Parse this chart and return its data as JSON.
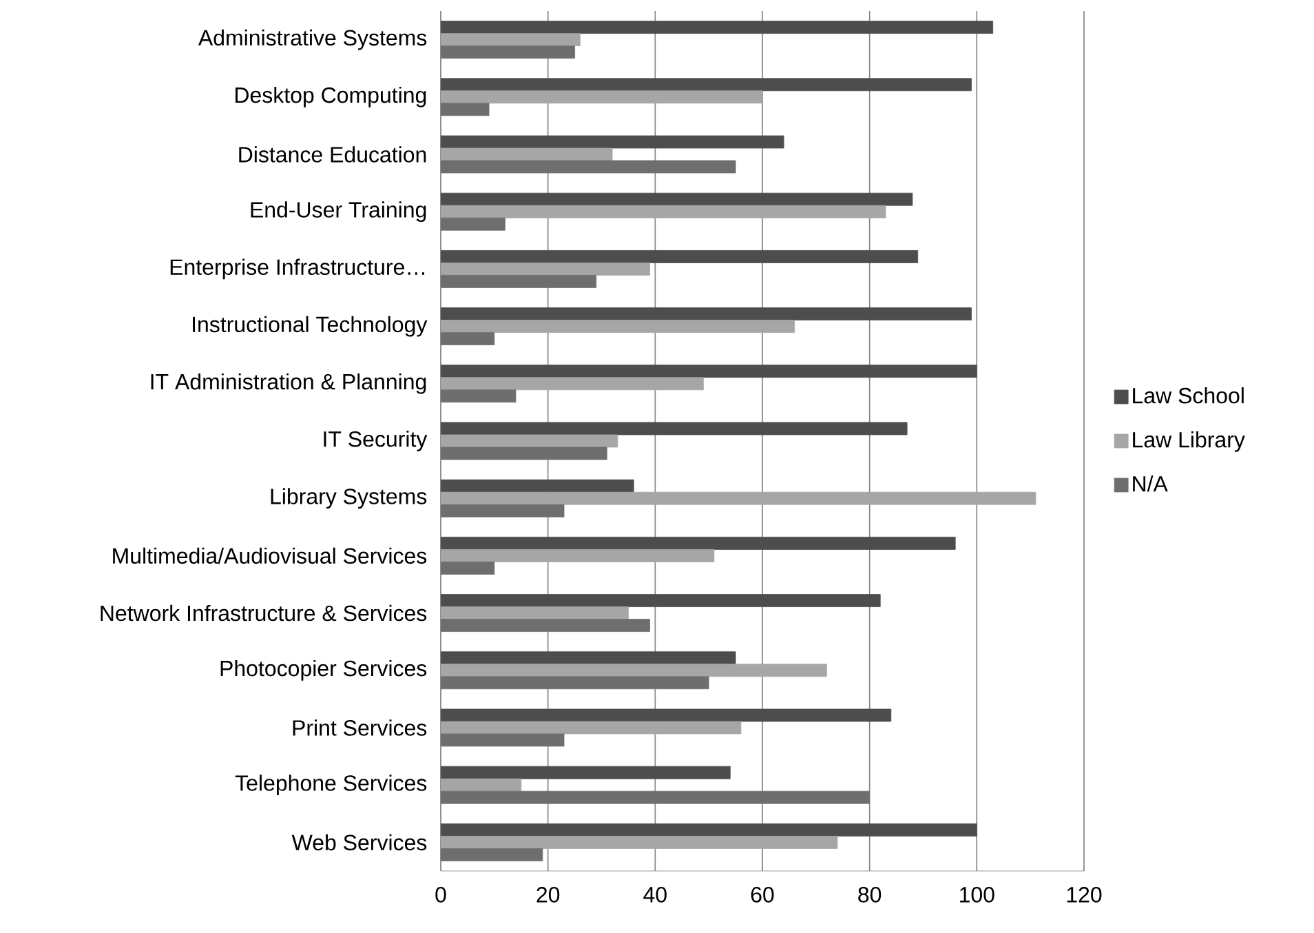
{
  "chart_data": {
    "type": "bar",
    "orientation": "horizontal",
    "categories": [
      "Administrative Systems",
      "Desktop Computing",
      "Distance Education",
      "End-User Training",
      "Enterprise Infrastructure…",
      "Instructional Technology",
      "IT Administration & Planning",
      "IT Security",
      "Library Systems",
      "Multimedia/Audiovisual Services",
      "Network Infrastructure & Services",
      "Photocopier Services",
      "Print Services",
      "Telephone Services",
      "Web Services"
    ],
    "series": [
      {
        "name": "Law School",
        "color": "#4d4d4d",
        "values": [
          103,
          99,
          64,
          88,
          89,
          99,
          100,
          87,
          36,
          96,
          82,
          55,
          84,
          54,
          100
        ]
      },
      {
        "name": "Law Library",
        "color": "#a6a6a6",
        "values": [
          26,
          60,
          32,
          83,
          39,
          66,
          49,
          33,
          111,
          51,
          35,
          72,
          56,
          15,
          74
        ]
      },
      {
        "name": "N/A",
        "color": "#6e6e6e",
        "values": [
          25,
          9,
          55,
          12,
          29,
          10,
          14,
          31,
          23,
          10,
          39,
          50,
          23,
          80,
          19
        ]
      }
    ],
    "xlim": [
      0,
      120
    ],
    "xticks": [
      0,
      20,
      40,
      60,
      80,
      100,
      120
    ],
    "grid": "x",
    "legend": "right"
  }
}
